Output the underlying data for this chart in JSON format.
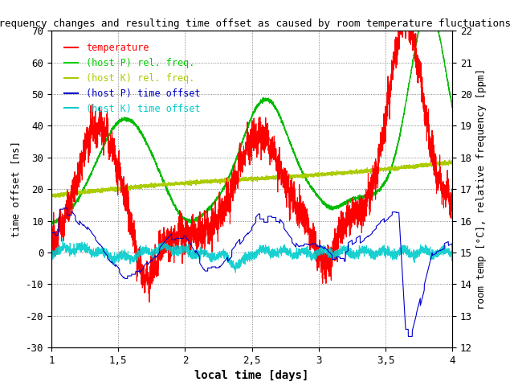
{
  "title": "Frequency changes and resulting time offset as caused by room temperature fluctuations",
  "xlabel": "local time [days]",
  "ylabel_left": "time offset [ns]",
  "ylabel_right": "room temp [°C], relative frequency [ppm]",
  "xlim": [
    1,
    4
  ],
  "ylim_left": [
    -30,
    70
  ],
  "ylim_right": [
    12,
    22
  ],
  "xticks": [
    1,
    1.5,
    2,
    2.5,
    3,
    3.5,
    4
  ],
  "yticks_left": [
    -30,
    -20,
    -10,
    0,
    10,
    20,
    30,
    40,
    50,
    60,
    70
  ],
  "yticks_right": [
    12,
    13,
    14,
    15,
    16,
    17,
    18,
    19,
    20,
    21,
    22
  ],
  "legend_entries": [
    "temperature",
    "(host P) rel. freq.",
    "(host K) rel. freq.",
    "(host P) time offset",
    "(host K) time offset"
  ],
  "legend_colors": [
    "#ff0000",
    "#00cc00",
    "#aacc00",
    "#0000cc",
    "#00cccc"
  ],
  "bg_color": "#ffffff",
  "title_fontsize": 9
}
